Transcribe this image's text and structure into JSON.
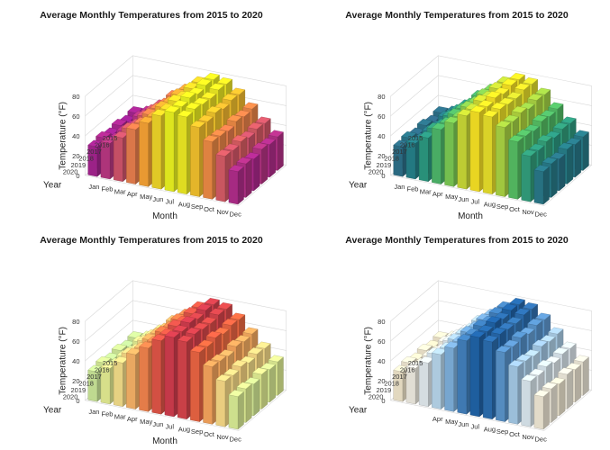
{
  "chart_data": [
    {
      "type": "bar3d",
      "title": "Average Monthly Temperatures from 2015 to 2020",
      "xlabel": "Month",
      "ylabel": "Year",
      "zlabel": "Temperature (°F)",
      "colormap": "plasma",
      "zlim": [
        0,
        80
      ],
      "zticks": [
        0,
        20,
        40,
        60,
        80
      ],
      "months": [
        "Jan",
        "Feb",
        "Mar",
        "Apr",
        "May",
        "Jun",
        "Jul",
        "Aug",
        "Sep",
        "Oct",
        "Nov",
        "Dec"
      ],
      "month_tick_labels": [
        "Jan",
        "Feb",
        "Mar",
        "Apr",
        "May",
        "Jun",
        "Jul",
        "Aug",
        "Sep",
        "Oct",
        "Nov",
        "Dec"
      ],
      "years": [
        "2015",
        "2016",
        "2017",
        "2018",
        "2019",
        "2020"
      ],
      "values": [
        [
          30,
          33,
          42,
          54,
          63,
          73,
          79,
          77,
          69,
          57,
          45,
          34
        ],
        [
          28,
          35,
          44,
          53,
          65,
          74,
          80,
          78,
          70,
          56,
          46,
          33
        ],
        [
          31,
          32,
          45,
          55,
          64,
          72,
          78,
          76,
          68,
          58,
          44,
          35
        ],
        [
          29,
          34,
          43,
          56,
          66,
          75,
          81,
          77,
          71,
          55,
          47,
          32
        ],
        [
          32,
          33,
          46,
          54,
          63,
          73,
          79,
          79,
          69,
          57,
          45,
          34
        ],
        [
          30,
          36,
          44,
          55,
          64,
          74,
          80,
          78,
          70,
          58,
          46,
          33
        ]
      ]
    },
    {
      "type": "bar3d",
      "title": "Average Monthly Temperatures from 2015 to 2020",
      "xlabel": "Month",
      "ylabel": "Year",
      "zlabel": "Temperature (°F)",
      "colormap": "viridis",
      "zlim": [
        0,
        80
      ],
      "zticks": [
        0,
        20,
        40,
        60,
        80
      ],
      "months": [
        "Jan",
        "Feb",
        "Mar",
        "Apr",
        "May",
        "Jun",
        "Jul",
        "Aug",
        "Sep",
        "Oct",
        "Nov",
        "Dec"
      ],
      "month_tick_labels": [
        "Jan",
        "Feb",
        "Mar",
        "Apr",
        "May",
        "Jun",
        "Jul",
        "Aug",
        "Sep",
        "Oct",
        "Nov",
        "Dec"
      ],
      "years": [
        "2015",
        "2016",
        "2017",
        "2018",
        "2019",
        "2020"
      ],
      "values": [
        [
          30,
          33,
          42,
          54,
          63,
          73,
          79,
          77,
          69,
          57,
          45,
          34
        ],
        [
          28,
          35,
          44,
          53,
          65,
          74,
          80,
          78,
          70,
          56,
          46,
          33
        ],
        [
          31,
          32,
          45,
          55,
          64,
          72,
          78,
          76,
          68,
          58,
          44,
          35
        ],
        [
          29,
          34,
          43,
          56,
          66,
          75,
          81,
          77,
          71,
          55,
          47,
          32
        ],
        [
          32,
          33,
          46,
          54,
          63,
          73,
          79,
          79,
          69,
          57,
          45,
          34
        ],
        [
          30,
          36,
          44,
          55,
          64,
          74,
          80,
          78,
          70,
          58,
          46,
          33
        ]
      ]
    },
    {
      "type": "bar3d",
      "title": "Average Monthly Temperatures from 2015 to 2020",
      "xlabel": "Month",
      "ylabel": "Year",
      "zlabel": "Temperature (°F)",
      "colormap": "spectral",
      "zlim": [
        0,
        80
      ],
      "zticks": [
        0,
        20,
        40,
        60,
        80
      ],
      "months": [
        "Jan",
        "Feb",
        "Mar",
        "Apr",
        "May",
        "Jun",
        "Jul",
        "Aug",
        "Sep",
        "Oct",
        "Nov",
        "Dec"
      ],
      "month_tick_labels": [
        "Jan",
        "Feb",
        "Mar",
        "Apr",
        "May",
        "Jun",
        "Jul",
        "Aug",
        "Sep",
        "Oct",
        "Nov",
        "Dec"
      ],
      "years": [
        "2015",
        "2016",
        "2017",
        "2018",
        "2019",
        "2020"
      ],
      "values": [
        [
          30,
          33,
          42,
          54,
          63,
          73,
          79,
          77,
          69,
          57,
          45,
          34
        ],
        [
          28,
          35,
          44,
          53,
          65,
          74,
          80,
          78,
          70,
          56,
          46,
          33
        ],
        [
          31,
          32,
          45,
          55,
          64,
          72,
          78,
          76,
          68,
          58,
          44,
          35
        ],
        [
          29,
          34,
          43,
          56,
          66,
          75,
          81,
          77,
          71,
          55,
          47,
          32
        ],
        [
          32,
          33,
          46,
          54,
          63,
          73,
          79,
          79,
          69,
          57,
          45,
          34
        ],
        [
          30,
          36,
          44,
          55,
          64,
          74,
          80,
          78,
          70,
          58,
          46,
          33
        ]
      ]
    },
    {
      "type": "bar3d",
      "title": "Average Monthly Temperatures from 2015 to 2020",
      "xlabel": "",
      "ylabel": "Year",
      "zlabel": "Temperature (°F)",
      "colormap": "brown-white-blue",
      "zlim": [
        0,
        80
      ],
      "zticks": [
        0,
        20,
        40,
        60,
        80
      ],
      "months": [
        "Jan",
        "Feb",
        "Mar",
        "Apr",
        "May",
        "Jun",
        "Jul",
        "Aug",
        "Sep",
        "Oct",
        "Nov",
        "Dec"
      ],
      "month_tick_labels": [
        "",
        "",
        "",
        "Apr",
        "May",
        "Jun",
        "Jul",
        "Aug",
        "Sep",
        "Oct",
        "Nov",
        "Dec"
      ],
      "years": [
        "2015",
        "2016",
        "2017",
        "2018",
        "2019",
        "2020"
      ],
      "values": [
        [
          30,
          33,
          42,
          54,
          63,
          73,
          79,
          77,
          69,
          57,
          45,
          34
        ],
        [
          28,
          35,
          44,
          53,
          65,
          74,
          80,
          78,
          70,
          56,
          46,
          33
        ],
        [
          31,
          32,
          45,
          55,
          64,
          72,
          78,
          76,
          68,
          58,
          44,
          35
        ],
        [
          29,
          34,
          43,
          56,
          66,
          75,
          81,
          77,
          71,
          55,
          47,
          32
        ],
        [
          32,
          33,
          46,
          54,
          63,
          73,
          79,
          79,
          69,
          57,
          45,
          34
        ],
        [
          30,
          36,
          44,
          55,
          64,
          74,
          80,
          78,
          70,
          58,
          46,
          33
        ]
      ]
    }
  ]
}
